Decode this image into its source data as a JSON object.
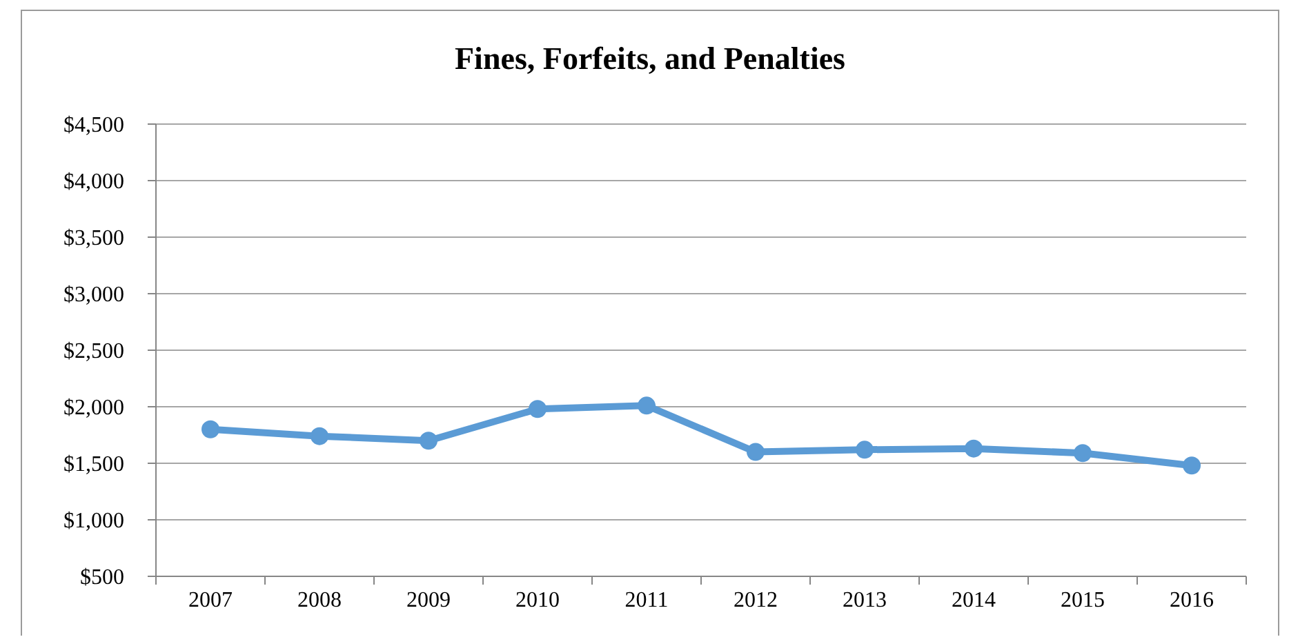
{
  "chart_data": {
    "type": "line",
    "title": "Fines, Forfeits, and Penalties",
    "categories": [
      "2007",
      "2008",
      "2009",
      "2010",
      "2011",
      "2012",
      "2013",
      "2014",
      "2015",
      "2016"
    ],
    "values": [
      1800,
      1740,
      1700,
      1980,
      2010,
      1600,
      1620,
      1630,
      1590,
      1480
    ],
    "color": "#5b9bd5",
    "ylim": [
      500,
      4500
    ],
    "yticks": [
      {
        "value": 500,
        "label": "$500"
      },
      {
        "value": 1000,
        "label": "$1,000"
      },
      {
        "value": 1500,
        "label": "$1,500"
      },
      {
        "value": 2000,
        "label": "$2,000"
      },
      {
        "value": 2500,
        "label": "$2,500"
      },
      {
        "value": 3000,
        "label": "$3,000"
      },
      {
        "value": 3500,
        "label": "$3,500"
      },
      {
        "value": 4000,
        "label": "$4,000"
      },
      {
        "value": 4500,
        "label": "$4,500"
      }
    ],
    "grid": "y",
    "marker": "circle",
    "line_style": "solid"
  }
}
